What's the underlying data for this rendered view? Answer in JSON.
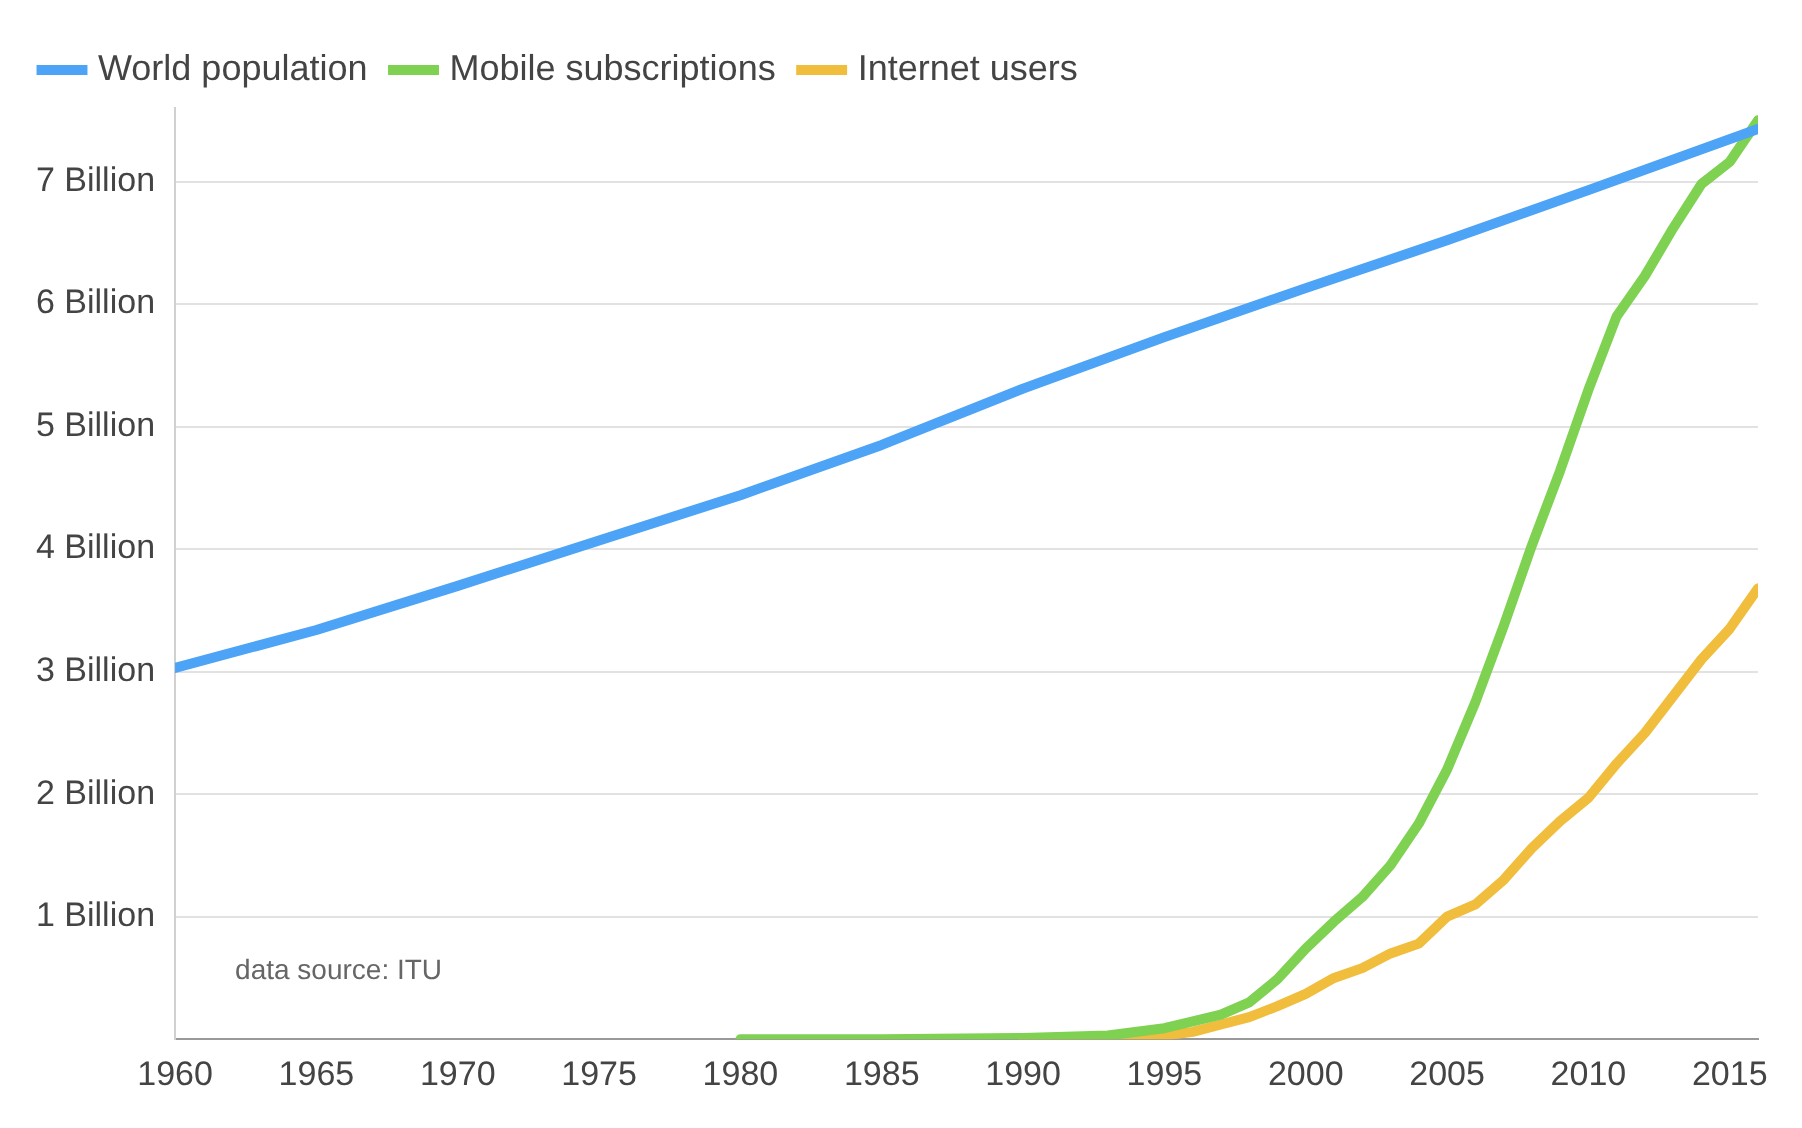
{
  "chart_data": {
    "type": "line",
    "annotations": [
      "data source: ITU"
    ],
    "xlim": [
      1960,
      2016
    ],
    "xticks": [
      1960,
      1965,
      1970,
      1975,
      1980,
      1985,
      1990,
      1995,
      2000,
      2005,
      2010,
      2015
    ],
    "ylim": [
      0,
      7.6
    ],
    "yticks": [
      {
        "value": 0,
        "label": null
      },
      {
        "value": 1,
        "label": "1 Billion"
      },
      {
        "value": 2,
        "label": "2 Billion"
      },
      {
        "value": 3,
        "label": "3 Billion"
      },
      {
        "value": 4,
        "label": "4 Billion"
      },
      {
        "value": 5,
        "label": "5 Billion"
      },
      {
        "value": 6,
        "label": "6 Billion"
      },
      {
        "value": 7,
        "label": "7 Billion"
      }
    ],
    "grid": "y",
    "legend": "top left",
    "marker": "none",
    "line_style": "solid",
    "series": [
      {
        "name": "World population",
        "color": "#4da3f5",
        "x": [
          1960,
          1965,
          1970,
          1975,
          1980,
          1985,
          1990,
          1995,
          2000,
          2005,
          2010,
          2016
        ],
        "values": [
          3.03,
          3.34,
          3.7,
          4.07,
          4.44,
          4.85,
          5.31,
          5.73,
          6.13,
          6.52,
          6.93,
          7.43
        ]
      },
      {
        "name": "Mobile subscriptions",
        "color": "#7ed151",
        "x": [
          1980,
          1985,
          1990,
          1993,
          1995,
          1997,
          1998,
          1999,
          2000,
          2001,
          2002,
          2003,
          2004,
          2005,
          2006,
          2007,
          2008,
          2009,
          2010,
          2011,
          2012,
          2013,
          2014,
          2015,
          2016
        ],
        "values": [
          0,
          0,
          0.01,
          0.03,
          0.09,
          0.2,
          0.3,
          0.49,
          0.74,
          0.96,
          1.16,
          1.42,
          1.76,
          2.2,
          2.75,
          3.37,
          4.03,
          4.64,
          5.3,
          5.9,
          6.23,
          6.62,
          6.98,
          7.16,
          7.5
        ]
      },
      {
        "name": "Internet users",
        "color": "#f0bd3c",
        "x": [
          1990,
          1993,
          1995,
          1996,
          1997,
          1998,
          1999,
          2000,
          2001,
          2002,
          2003,
          2004,
          2005,
          2006,
          2007,
          2008,
          2009,
          2010,
          2011,
          2012,
          2013,
          2014,
          2015,
          2016
        ],
        "values": [
          0,
          0.01,
          0.03,
          0.06,
          0.12,
          0.18,
          0.27,
          0.37,
          0.5,
          0.58,
          0.7,
          0.78,
          1.0,
          1.1,
          1.3,
          1.56,
          1.78,
          1.97,
          2.25,
          2.5,
          2.8,
          3.1,
          3.35,
          3.68
        ]
      }
    ]
  }
}
